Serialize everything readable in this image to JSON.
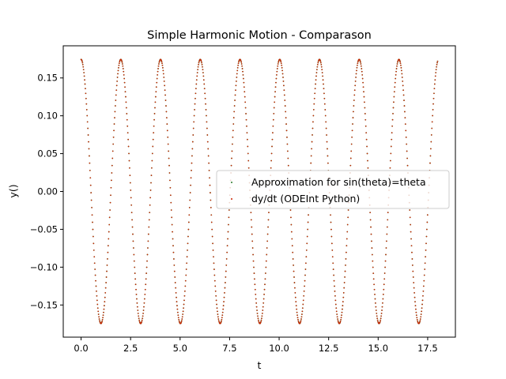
{
  "chart_data": {
    "type": "scatter",
    "title": "Simple Harmonic Motion - Comparason",
    "xlabel": "t",
    "ylabel": "y()",
    "xlim": [
      -0.9,
      18.9
    ],
    "ylim": [
      -0.1925,
      0.1925
    ],
    "x_ticks": [
      0.0,
      2.5,
      5.0,
      7.5,
      10.0,
      12.5,
      15.0,
      17.5
    ],
    "x_tick_labels": [
      "0.0",
      "2.5",
      "5.0",
      "7.5",
      "10.0",
      "12.5",
      "15.0",
      "17.5"
    ],
    "y_ticks": [
      -0.15,
      -0.1,
      -0.05,
      0.0,
      0.05,
      0.1,
      0.15
    ],
    "y_tick_labels": [
      "−0.15",
      "−0.10",
      "−0.05",
      "0.00",
      "0.05",
      "0.10",
      "0.15"
    ],
    "grid": false,
    "legend_position": "center-right",
    "series": [
      {
        "name": "Approximation for sin(theta)=theta",
        "color": "#2a7a2a",
        "marker": "point",
        "function": "0.1745*cos(2*pi*t/T)",
        "amplitude": 0.1745,
        "period": 2.006,
        "t_start": 0.0,
        "t_end": 18.0,
        "n_points": 1000
      },
      {
        "name": "dy/dt (ODEInt Python)",
        "color": "#cc2200",
        "marker": "point",
        "function": "0.1745*cos(2*pi*t/T)",
        "amplitude": 0.1745,
        "period": 2.006,
        "t_start": 0.0,
        "t_end": 18.0,
        "n_points": 1000
      }
    ]
  }
}
